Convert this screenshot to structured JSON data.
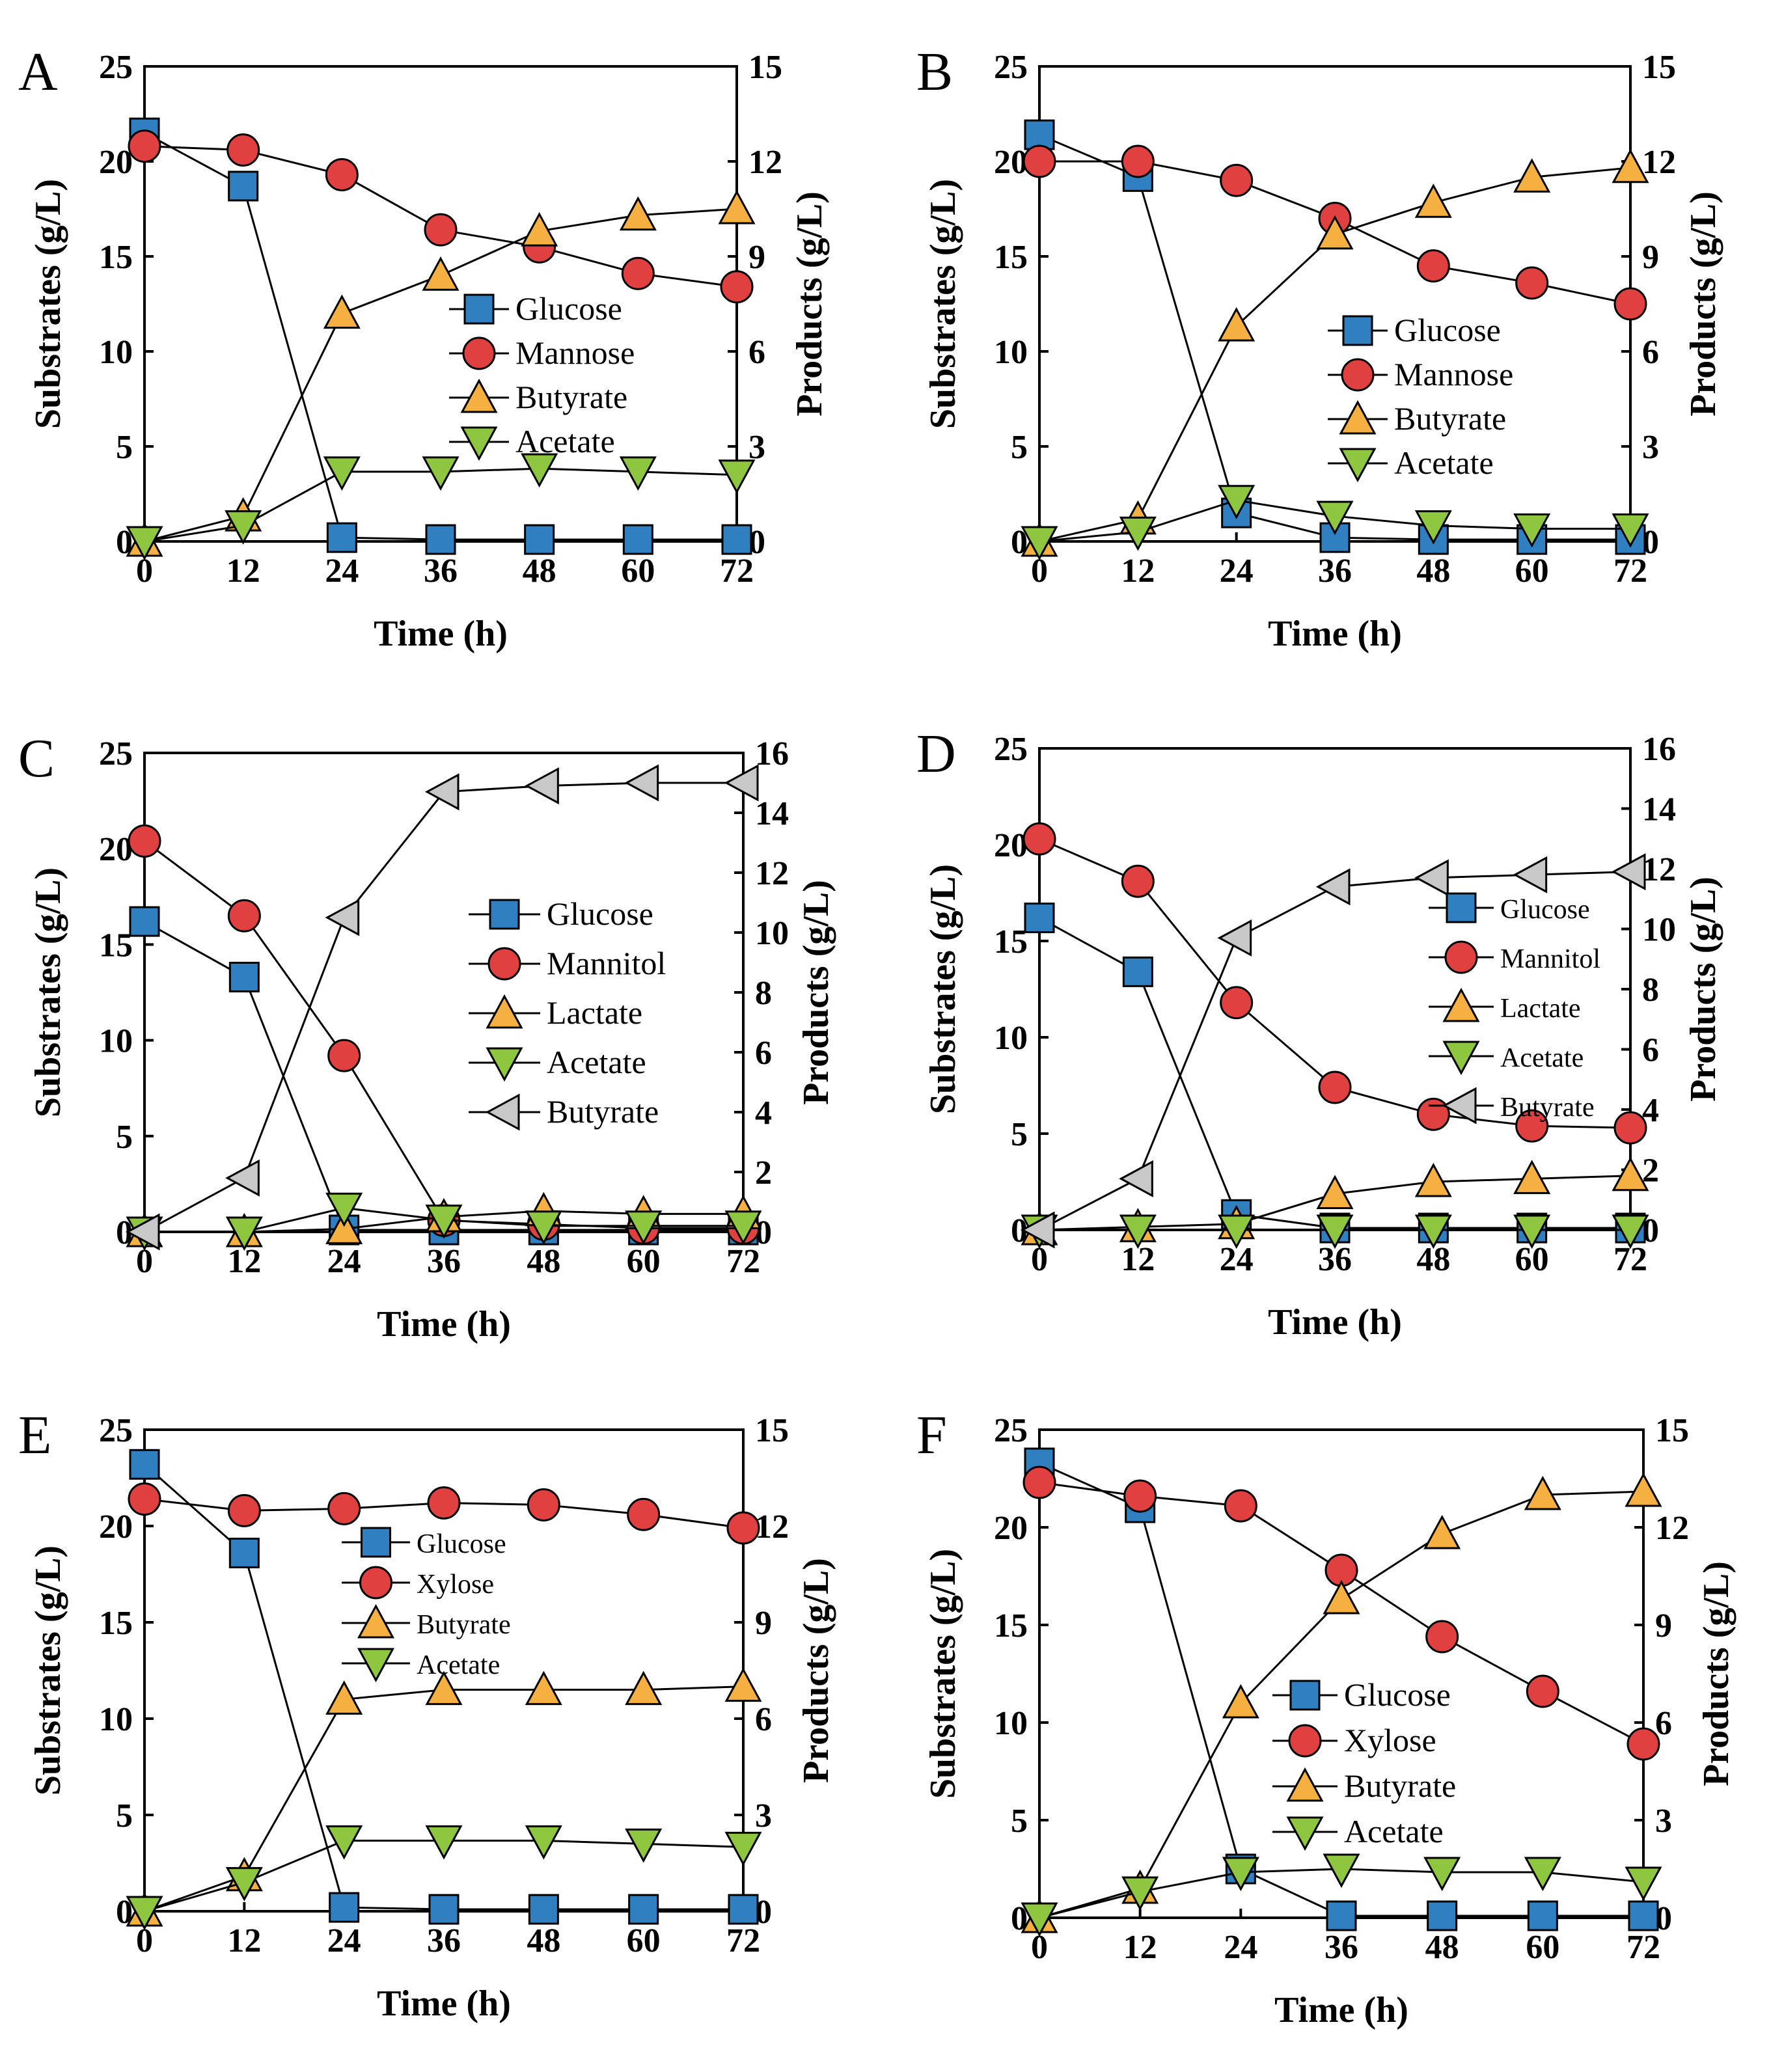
{
  "figure": {
    "colors": {
      "Glucose": "#2f7fc1",
      "Mannose": "#e0403f",
      "Mannitol": "#e0403f",
      "Xylose": "#e0403f",
      "Butyrate": "#f5b041",
      "Acetate": "#8ec63f",
      "Lactate": "#f5b041",
      "ButyrateGray": "#c8c8c8"
    },
    "icons": {
      "square": "square-marker-icon",
      "circle": "circle-marker-icon",
      "triangle-up": "triangle-up-marker-icon",
      "triangle-down": "triangle-down-marker-icon",
      "triangle-left": "triangle-left-marker-icon"
    }
  },
  "chart_data": [
    {
      "panel": "A",
      "type": "line",
      "xlabel": "Time (h)",
      "ylabel": "Substrates (g/L)",
      "y2label": "Products (g/L)",
      "x": [
        0,
        12,
        24,
        36,
        48,
        60,
        72
      ],
      "xticks": [
        0,
        12,
        24,
        36,
        48,
        60,
        72
      ],
      "ylim": [
        0,
        25
      ],
      "yticks": [
        0,
        5,
        10,
        15,
        20,
        25
      ],
      "y2lim": [
        0,
        15
      ],
      "y2ticks": [
        0,
        3,
        6,
        9,
        12,
        15
      ],
      "legend_position": "center-right",
      "series": [
        {
          "name": "Glucose",
          "axis": "left",
          "marker": "square",
          "color": "Glucose",
          "values": [
            21.5,
            18.7,
            0.2,
            0.1,
            0.1,
            0.1,
            0.1
          ]
        },
        {
          "name": "Mannose",
          "axis": "left",
          "marker": "circle",
          "color": "Mannose",
          "values": [
            20.8,
            20.6,
            19.3,
            16.4,
            15.5,
            14.1,
            13.4
          ]
        },
        {
          "name": "Butyrate",
          "axis": "right",
          "marker": "triangle-up",
          "color": "Butyrate",
          "values": [
            0.0,
            0.8,
            7.2,
            8.4,
            9.8,
            10.3,
            10.5
          ]
        },
        {
          "name": "Acetate",
          "axis": "right",
          "marker": "triangle-down",
          "color": "Acetate",
          "values": [
            0.0,
            0.5,
            2.2,
            2.2,
            2.3,
            2.2,
            2.1
          ]
        }
      ]
    },
    {
      "panel": "B",
      "type": "line",
      "xlabel": "Time (h)",
      "ylabel": "Substrates (g/L)",
      "y2label": "Products (g/L)",
      "x": [
        0,
        12,
        24,
        36,
        48,
        60,
        72
      ],
      "xticks": [
        0,
        12,
        24,
        36,
        48,
        60,
        72
      ],
      "ylim": [
        0,
        25
      ],
      "yticks": [
        0,
        5,
        10,
        15,
        20,
        25
      ],
      "y2lim": [
        0,
        15
      ],
      "y2ticks": [
        0,
        3,
        6,
        9,
        12,
        15
      ],
      "legend_position": "center-right",
      "series": [
        {
          "name": "Glucose",
          "axis": "left",
          "marker": "square",
          "color": "Glucose",
          "values": [
            21.4,
            19.2,
            1.5,
            0.2,
            0.1,
            0.1,
            0.1
          ]
        },
        {
          "name": "Mannose",
          "axis": "left",
          "marker": "circle",
          "color": "Mannose",
          "values": [
            20.0,
            20.0,
            19.0,
            17.0,
            14.5,
            13.6,
            12.5
          ]
        },
        {
          "name": "Butyrate",
          "axis": "right",
          "marker": "triangle-up",
          "color": "Butyrate",
          "values": [
            0.0,
            0.7,
            6.8,
            9.7,
            10.7,
            11.5,
            11.8
          ]
        },
        {
          "name": "Acetate",
          "axis": "right",
          "marker": "triangle-down",
          "color": "Acetate",
          "values": [
            0.0,
            0.3,
            1.3,
            0.8,
            0.5,
            0.4,
            0.4
          ]
        }
      ]
    },
    {
      "panel": "C",
      "type": "line",
      "xlabel": "Time (h)",
      "ylabel": "Substrates (g/L)",
      "y2label": "Products (g/L)",
      "x": [
        0,
        12,
        24,
        36,
        48,
        60,
        72
      ],
      "xticks": [
        0,
        12,
        24,
        36,
        48,
        60,
        72
      ],
      "ylim": [
        0,
        25
      ],
      "yticks": [
        0,
        5,
        10,
        15,
        20,
        25
      ],
      "y2lim": [
        0,
        16
      ],
      "y2ticks": [
        0,
        2,
        4,
        6,
        8,
        10,
        12,
        14,
        16
      ],
      "legend_position": "center-right",
      "series": [
        {
          "name": "Glucose",
          "axis": "left",
          "marker": "square",
          "color": "Glucose",
          "values": [
            16.2,
            13.3,
            0.1,
            0.1,
            0.1,
            0.1,
            0.1
          ]
        },
        {
          "name": "Mannitol",
          "axis": "left",
          "marker": "circle",
          "color": "Mannitol",
          "values": [
            20.4,
            16.5,
            9.2,
            0.6,
            0.4,
            0.2,
            0.2
          ]
        },
        {
          "name": "Lactate",
          "axis": "right",
          "marker": "triangle-up",
          "color": "Lactate",
          "values": [
            0.0,
            0.0,
            0.1,
            0.5,
            0.7,
            0.6,
            0.6
          ]
        },
        {
          "name": "Acetate",
          "axis": "right",
          "marker": "triangle-down",
          "color": "Acetate",
          "values": [
            0.0,
            0.0,
            0.8,
            0.4,
            0.2,
            0.2,
            0.2
          ]
        },
        {
          "name": "Butyrate",
          "axis": "right",
          "marker": "triangle-left",
          "color": "ButyrateGray",
          "values": [
            0.0,
            1.8,
            10.5,
            14.7,
            14.9,
            15.0,
            15.0
          ]
        }
      ]
    },
    {
      "panel": "D",
      "type": "line",
      "xlabel": "Time (h)",
      "ylabel": "Substrates (g/L)",
      "y2label": "Products (g/L)",
      "x": [
        0,
        12,
        24,
        36,
        48,
        60,
        72
      ],
      "xticks": [
        0,
        12,
        24,
        36,
        48,
        60,
        72
      ],
      "ylim": [
        0,
        25
      ],
      "yticks": [
        0,
        5,
        10,
        15,
        20,
        25
      ],
      "y2lim": [
        0,
        16
      ],
      "y2ticks": [
        0,
        2,
        4,
        6,
        8,
        10,
        12,
        14,
        16
      ],
      "legend_position": "center-right",
      "series": [
        {
          "name": "Glucose",
          "axis": "left",
          "marker": "square",
          "color": "Glucose",
          "values": [
            16.2,
            13.4,
            0.8,
            0.1,
            0.1,
            0.1,
            0.1
          ]
        },
        {
          "name": "Mannitol",
          "axis": "left",
          "marker": "circle",
          "color": "Mannitol",
          "values": [
            20.3,
            18.1,
            11.8,
            7.4,
            6.0,
            5.4,
            5.3
          ]
        },
        {
          "name": "Lactate",
          "axis": "right",
          "marker": "triangle-up",
          "color": "Lactate",
          "values": [
            0.0,
            0.1,
            0.2,
            1.2,
            1.6,
            1.7,
            1.8
          ]
        },
        {
          "name": "Acetate",
          "axis": "right",
          "marker": "triangle-down",
          "color": "Acetate",
          "values": [
            0.0,
            0.0,
            0.0,
            0.0,
            0.0,
            0.0,
            0.0
          ]
        },
        {
          "name": "Butyrate",
          "axis": "right",
          "marker": "triangle-left",
          "color": "ButyrateGray",
          "values": [
            0.0,
            1.7,
            9.7,
            11.4,
            11.7,
            11.8,
            11.9
          ]
        }
      ]
    },
    {
      "panel": "E",
      "type": "line",
      "xlabel": "Time (h)",
      "ylabel": "Substrates (g/L)",
      "y2label": "Products (g/L)",
      "x": [
        0,
        12,
        24,
        36,
        48,
        60,
        72
      ],
      "xticks": [
        0,
        12,
        24,
        36,
        48,
        60,
        72
      ],
      "ylim": [
        0,
        25
      ],
      "yticks": [
        0,
        5,
        10,
        15,
        20,
        25
      ],
      "y2lim": [
        0,
        15
      ],
      "y2ticks": [
        0,
        3,
        6,
        9,
        12,
        15
      ],
      "legend_position": "center",
      "series": [
        {
          "name": "Glucose",
          "axis": "left",
          "marker": "square",
          "color": "Glucose",
          "values": [
            23.2,
            18.6,
            0.2,
            0.1,
            0.1,
            0.1,
            0.1
          ]
        },
        {
          "name": "Xylose",
          "axis": "left",
          "marker": "circle",
          "color": "Xylose",
          "values": [
            21.4,
            20.8,
            20.9,
            21.2,
            21.1,
            20.6,
            19.9
          ]
        },
        {
          "name": "Butyrate",
          "axis": "right",
          "marker": "triangle-up",
          "color": "Butyrate",
          "values": [
            0.0,
            1.1,
            6.6,
            6.9,
            6.9,
            6.9,
            7.0
          ]
        },
        {
          "name": "Acetate",
          "axis": "right",
          "marker": "triangle-down",
          "color": "Acetate",
          "values": [
            0.0,
            0.9,
            2.2,
            2.2,
            2.2,
            2.1,
            2.0
          ]
        }
      ]
    },
    {
      "panel": "F",
      "type": "line",
      "xlabel": "Time (h)",
      "ylabel": "Substrates (g/L)",
      "y2label": "Products (g/L)",
      "x": [
        0,
        12,
        24,
        36,
        48,
        60,
        72
      ],
      "xticks": [
        0,
        12,
        24,
        36,
        48,
        60,
        72
      ],
      "ylim": [
        0,
        25
      ],
      "yticks": [
        0,
        5,
        10,
        15,
        20,
        25
      ],
      "y2lim": [
        0,
        15
      ],
      "y2ticks": [
        0,
        3,
        6,
        9,
        12,
        15
      ],
      "legend_position": "center-left",
      "series": [
        {
          "name": "Glucose",
          "axis": "left",
          "marker": "square",
          "color": "Glucose",
          "values": [
            23.3,
            21.0,
            2.5,
            0.1,
            0.1,
            0.1,
            0.1
          ]
        },
        {
          "name": "Xylose",
          "axis": "left",
          "marker": "circle",
          "color": "Xylose",
          "values": [
            22.3,
            21.6,
            21.1,
            17.8,
            14.4,
            11.6,
            8.9
          ]
        },
        {
          "name": "Butyrate",
          "axis": "right",
          "marker": "triangle-up",
          "color": "Butyrate",
          "values": [
            0.0,
            0.9,
            6.6,
            9.8,
            11.8,
            13.0,
            13.1
          ]
        },
        {
          "name": "Acetate",
          "axis": "right",
          "marker": "triangle-down",
          "color": "Acetate",
          "values": [
            0.0,
            0.8,
            1.4,
            1.5,
            1.4,
            1.4,
            1.1
          ]
        }
      ]
    }
  ]
}
